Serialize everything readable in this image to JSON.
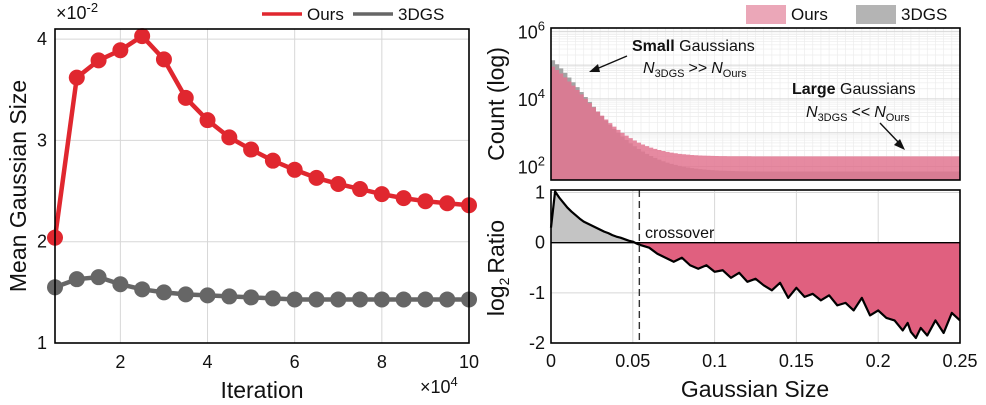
{
  "chart_data": [
    {
      "type": "line",
      "id": "left",
      "ylabel": "Mean Gaussian Size",
      "xlabel": "Iteration",
      "x_exponent_base": "×10",
      "x_exponent_power": "4",
      "y_exponent_base": "×10",
      "y_exponent_power": "-2",
      "xlim": [
        0.5,
        10
      ],
      "ylim": [
        1,
        4.1
      ],
      "xticks": [
        2,
        4,
        6,
        8,
        10
      ],
      "yticks": [
        1,
        2,
        3,
        4
      ],
      "grid": true,
      "legend": "top-right",
      "series": [
        {
          "name": "Ours",
          "color": "#e0272f",
          "x": [
            0.5,
            1,
            1.5,
            2,
            2.5,
            3,
            3.5,
            4,
            4.5,
            5,
            5.5,
            6,
            6.5,
            7,
            7.5,
            8,
            8.5,
            9,
            9.5,
            10
          ],
          "values": [
            2.04,
            3.62,
            3.79,
            3.89,
            4.03,
            3.8,
            3.42,
            3.2,
            3.03,
            2.91,
            2.8,
            2.71,
            2.63,
            2.57,
            2.52,
            2.47,
            2.43,
            2.4,
            2.38,
            2.36
          ]
        },
        {
          "name": "3DGS",
          "color": "#666666",
          "x": [
            0.5,
            1,
            1.5,
            2,
            2.5,
            3,
            3.5,
            4,
            4.5,
            5,
            5.5,
            6,
            6.5,
            7,
            7.5,
            8,
            8.5,
            9,
            9.5,
            10
          ],
          "values": [
            1.55,
            1.63,
            1.65,
            1.58,
            1.53,
            1.5,
            1.48,
            1.47,
            1.46,
            1.45,
            1.44,
            1.43,
            1.43,
            1.43,
            1.43,
            1.43,
            1.43,
            1.43,
            1.43,
            1.43
          ]
        }
      ]
    },
    {
      "type": "area",
      "id": "top-right",
      "ylabel": "Count (log)",
      "ytick_base": "10",
      "yticks_exponents": [
        "2",
        "4",
        "6"
      ],
      "xlim": [
        0,
        0.25
      ],
      "ylim_log10": [
        1.6,
        6.1
      ],
      "grid": true,
      "legend": "top-right",
      "bins": 100,
      "series": [
        {
          "name": "Ours",
          "color": "#e27590",
          "peak_log10": 5.0,
          "min_log10": 2.3,
          "decay": 52
        },
        {
          "name": "3DGS",
          "color": "#9a9a9a",
          "peak_log10": 5.2,
          "min_log10": 1.85,
          "decay": 40
        }
      ],
      "annotations": {
        "small_bold": "Small",
        "small_rest": "Gaussians",
        "small_n": "N",
        "small_sub1": "3DGS",
        "small_op": ">>",
        "small_sub2": "Ours",
        "large_bold": "Large",
        "large_rest": "Gaussians",
        "large_n": "N",
        "large_sub1": "3DGS",
        "large_op": "<<",
        "large_sub2": "Ours"
      }
    },
    {
      "type": "area",
      "id": "bottom-right",
      "ylabel_main": "log",
      "ylabel_sub": "2",
      "ylabel_rest": "Ratio",
      "xlabel": "Gaussian Size",
      "xlim": [
        0,
        0.25
      ],
      "ylim": [
        -2,
        1.05
      ],
      "xticks": [
        "0",
        "0.05",
        "0.1",
        "0.15",
        "0.2",
        "0.25"
      ],
      "yticks": [
        "1",
        "0",
        "-1",
        "-2"
      ],
      "crossover_x": 0.054,
      "crossover_label": "crossover",
      "x": [
        0,
        0.0025,
        0.005,
        0.0075,
        0.01,
        0.0125,
        0.015,
        0.0175,
        0.02,
        0.0225,
        0.025,
        0.0275,
        0.03,
        0.0325,
        0.035,
        0.0375,
        0.04,
        0.0425,
        0.045,
        0.0475,
        0.05,
        0.0525,
        0.055,
        0.06,
        0.065,
        0.07,
        0.075,
        0.08,
        0.085,
        0.09,
        0.095,
        0.1,
        0.105,
        0.11,
        0.115,
        0.12,
        0.125,
        0.13,
        0.135,
        0.14,
        0.145,
        0.15,
        0.155,
        0.16,
        0.165,
        0.17,
        0.175,
        0.18,
        0.185,
        0.19,
        0.195,
        0.2,
        0.205,
        0.21,
        0.215,
        0.218,
        0.22,
        0.223,
        0.226,
        0.23,
        0.235,
        0.24,
        0.245,
        0.25
      ],
      "values": [
        0.3,
        1.02,
        0.9,
        0.8,
        0.7,
        0.62,
        0.55,
        0.48,
        0.42,
        0.38,
        0.34,
        0.3,
        0.26,
        0.22,
        0.19,
        0.15,
        0.12,
        0.1,
        0.07,
        0.04,
        0.02,
        -0.02,
        -0.05,
        -0.1,
        -0.22,
        -0.3,
        -0.38,
        -0.3,
        -0.45,
        -0.52,
        -0.45,
        -0.58,
        -0.55,
        -0.7,
        -0.6,
        -0.78,
        -0.72,
        -0.85,
        -0.95,
        -0.8,
        -1.1,
        -0.9,
        -1.08,
        -1.02,
        -1.15,
        -1.05,
        -1.25,
        -1.2,
        -1.35,
        -1.1,
        -1.45,
        -1.35,
        -1.5,
        -1.55,
        -1.75,
        -1.6,
        -1.78,
        -1.9,
        -1.7,
        -1.85,
        -1.55,
        -1.8,
        -1.4,
        -1.55
      ],
      "colors": {
        "positive": "#c4c4c4",
        "negative": "#e0607f"
      }
    }
  ],
  "legend_left": {
    "ours": "Ours",
    "threedgs": "3DGS"
  },
  "legend_right": {
    "ours": "Ours",
    "threedgs": "3DGS"
  }
}
